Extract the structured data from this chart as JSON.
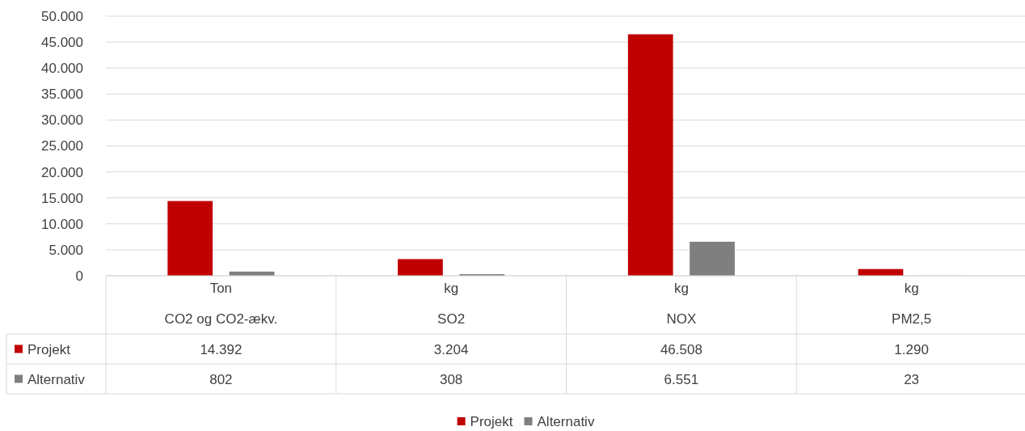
{
  "chart_data": {
    "type": "bar",
    "categories": [
      "Ton\nCO2 og CO2-ækv.",
      "kg\nSO2",
      "kg\nNOX",
      "kg\nPM2,5"
    ],
    "series": [
      {
        "name": "Projekt",
        "color": "#c00000",
        "values": [
          14392,
          3204,
          46508,
          1290
        ],
        "value_labels": [
          "14.392",
          "3.204",
          "46.508",
          "1.290"
        ]
      },
      {
        "name": "Alternativ",
        "color": "#7f7f7f",
        "values": [
          802,
          308,
          6551,
          23
        ],
        "value_labels": [
          "802",
          "308",
          "6.551",
          "23"
        ]
      }
    ],
    "ylim": [
      0,
      50000
    ],
    "yticks": [
      {
        "value": 0,
        "label": "0"
      },
      {
        "value": 5000,
        "label": "5.000"
      },
      {
        "value": 10000,
        "label": "10.000"
      },
      {
        "value": 15000,
        "label": "15.000"
      },
      {
        "value": 20000,
        "label": "20.000"
      },
      {
        "value": 25000,
        "label": "25.000"
      },
      {
        "value": 30000,
        "label": "30.000"
      },
      {
        "value": 35000,
        "label": "35.000"
      },
      {
        "value": 40000,
        "label": "40.000"
      },
      {
        "value": 45000,
        "label": "45.000"
      },
      {
        "value": 50000,
        "label": "50.000"
      }
    ],
    "grid": "y",
    "legend": "bottom"
  }
}
